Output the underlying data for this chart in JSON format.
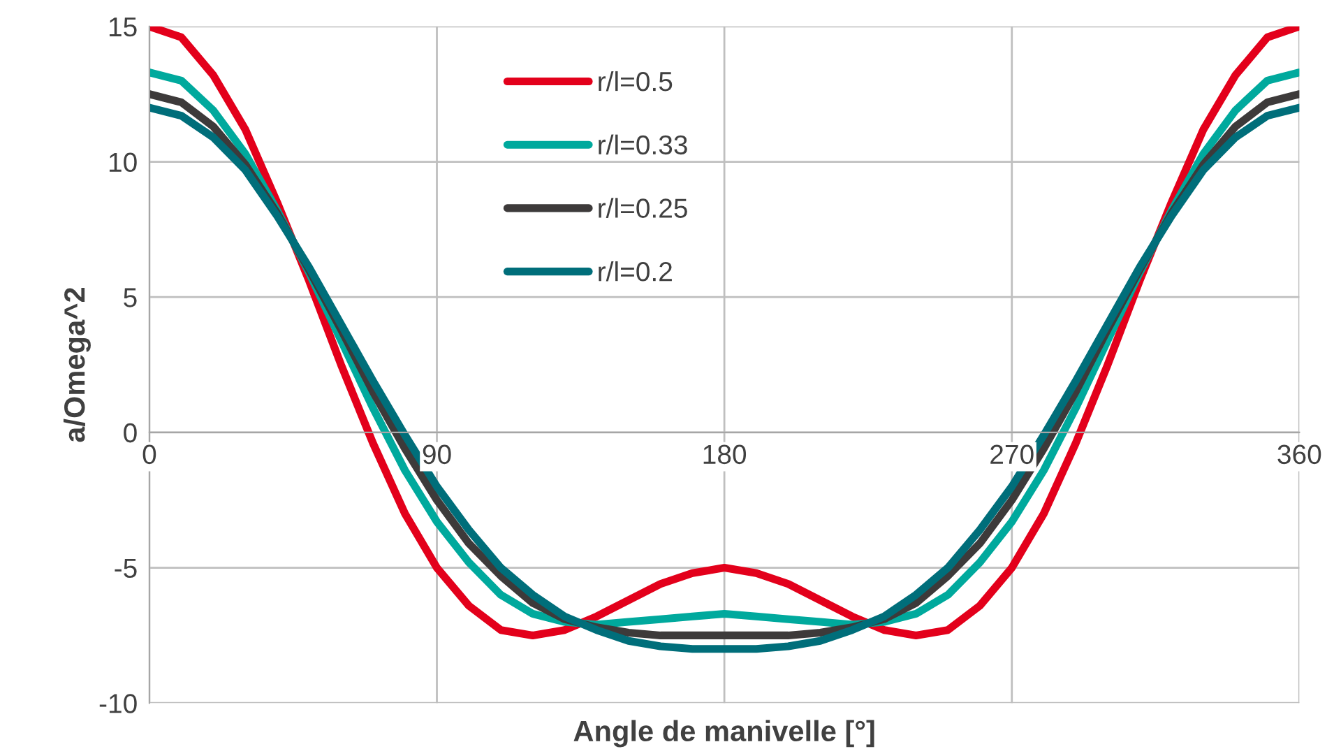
{
  "chart_data": {
    "type": "line",
    "xlabel": "Angle de manivelle [°]",
    "ylabel": "a/Omega^2",
    "x": [
      0,
      10,
      20,
      30,
      40,
      50,
      60,
      70,
      80,
      90,
      100,
      110,
      120,
      130,
      140,
      150,
      160,
      170,
      180,
      190,
      200,
      210,
      220,
      230,
      240,
      250,
      260,
      270,
      280,
      290,
      300,
      310,
      320,
      330,
      340,
      350,
      360
    ],
    "series": [
      {
        "name": "r/l=0.5",
        "color": "#e3001b",
        "values": [
          15,
          14.6,
          13.2,
          11.2,
          8.5,
          5.6,
          2.5,
          -0.4,
          -3.0,
          -5,
          -6.4,
          -7.3,
          -7.5,
          -7.3,
          -6.8,
          -6.2,
          -5.6,
          -5.2,
          -5,
          -5.2,
          -5.6,
          -6.2,
          -6.8,
          -7.3,
          -7.5,
          -7.3,
          -6.4,
          -5,
          -3.0,
          -0.4,
          2.5,
          5.6,
          8.5,
          11.2,
          13.2,
          14.6,
          15
        ]
      },
      {
        "name": "r/l=0.33",
        "color": "#00a99d",
        "values": [
          13.3,
          13.0,
          11.9,
          10.3,
          8.2,
          5.9,
          3.4,
          0.9,
          -1.4,
          -3.3,
          -4.8,
          -6.0,
          -6.7,
          -7.0,
          -7.1,
          -7.0,
          -6.9,
          -6.8,
          -6.7,
          -6.8,
          -6.9,
          -7.0,
          -7.1,
          -7.0,
          -6.7,
          -6.0,
          -4.8,
          -3.3,
          -1.4,
          0.9,
          3.4,
          5.9,
          8.2,
          10.3,
          11.9,
          13.0,
          13.3
        ]
      },
      {
        "name": "r/l=0.25",
        "color": "#3d3a3a",
        "values": [
          12.5,
          12.2,
          11.3,
          9.9,
          8.1,
          6.0,
          3.8,
          1.5,
          -0.6,
          -2.5,
          -4.1,
          -5.3,
          -6.3,
          -6.9,
          -7.2,
          -7.4,
          -7.5,
          -7.5,
          -7.5,
          -7.5,
          -7.5,
          -7.4,
          -7.2,
          -6.9,
          -6.3,
          -5.3,
          -4.1,
          -2.5,
          -0.6,
          1.5,
          3.8,
          6.0,
          8.1,
          9.9,
          11.3,
          12.2,
          12.5
        ]
      },
      {
        "name": "r/l=0.2",
        "color": "#006e7a",
        "values": [
          12,
          11.7,
          10.9,
          9.7,
          8.0,
          6.1,
          4,
          1.9,
          -0.1,
          -2,
          -3.6,
          -5.0,
          -6,
          -6.8,
          -7.3,
          -7.7,
          -7.9,
          -8.0,
          -8,
          -8.0,
          -7.9,
          -7.7,
          -7.3,
          -6.8,
          -6,
          -5.0,
          -3.6,
          -2,
          -0.1,
          1.9,
          4,
          6.1,
          8.0,
          9.7,
          10.9,
          11.7,
          12
        ]
      }
    ],
    "xlim": [
      0,
      360
    ],
    "xticks": [
      0,
      90,
      180,
      270,
      360
    ],
    "ylim": [
      -10,
      15
    ],
    "yticks": [
      -10,
      -5,
      0,
      5,
      10,
      15
    ],
    "grid": true,
    "legend": "top"
  }
}
